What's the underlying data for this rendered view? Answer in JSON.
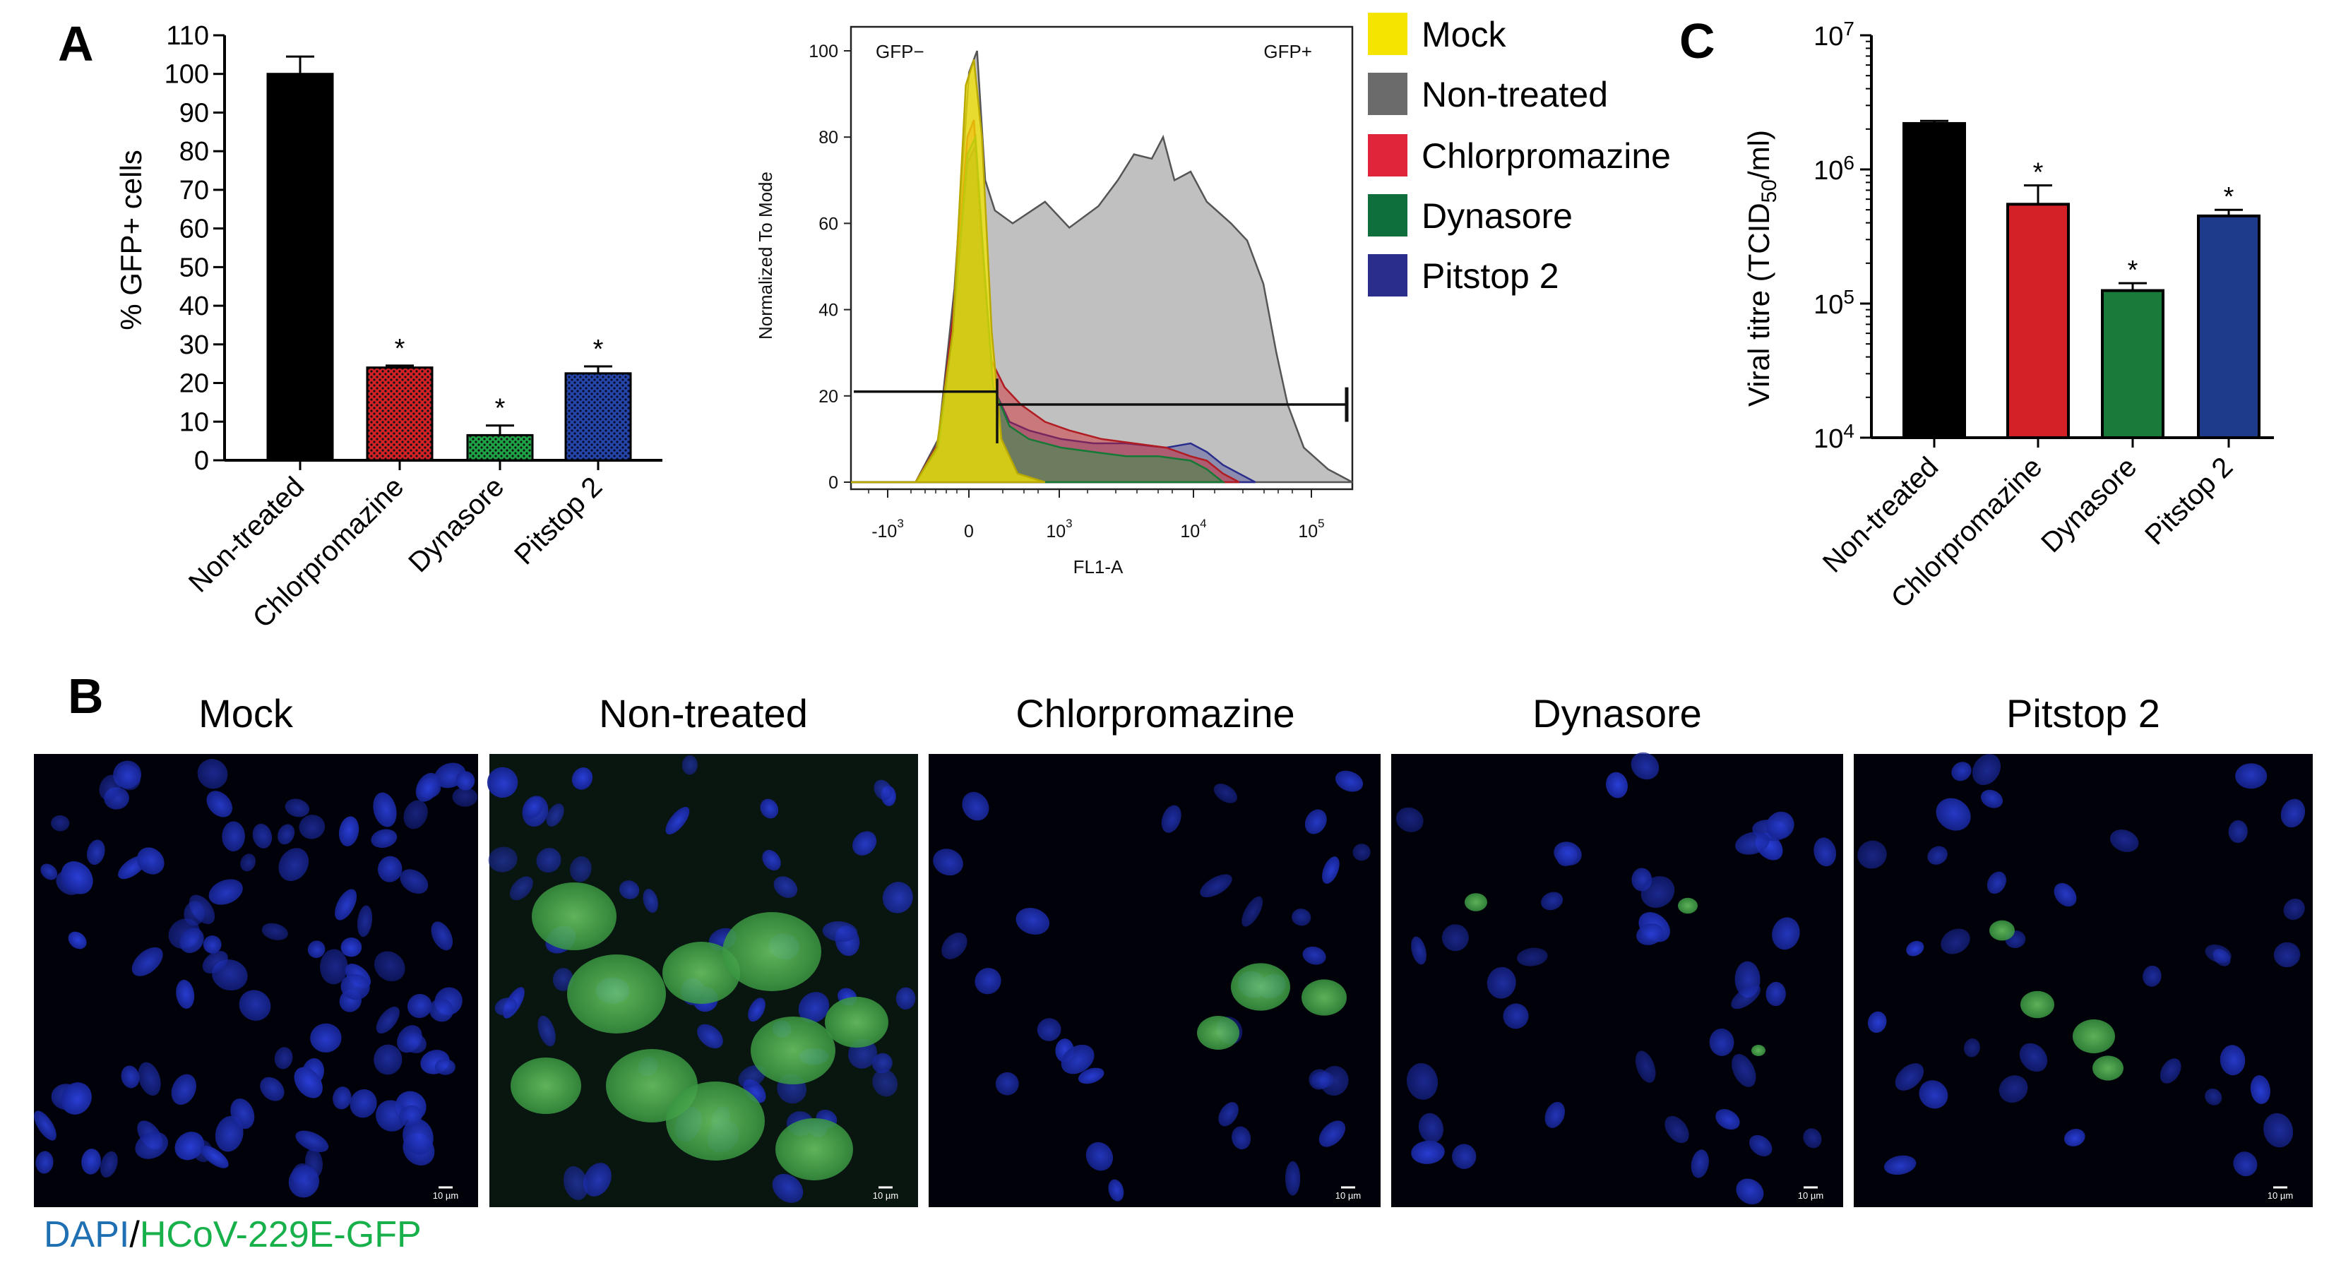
{
  "panel_labels": {
    "a": "A",
    "b": "B",
    "c": "C"
  },
  "colors": {
    "black": "#000000",
    "chlor_red": "#d42127",
    "dynasore_green": "#1fa548",
    "pitstop_navy": "#1e3a8a",
    "mock_yellow": "#f5e400",
    "nontreated_gray": "#8a8a8a",
    "legend_red": "#e0253a",
    "legend_green": "#0f6f3c",
    "legend_navy": "#2a2d8c",
    "dapi_label": "#1f6fb3",
    "gfp_label": "#18b04a"
  },
  "chart_data": [
    {
      "type": "bar",
      "title": "",
      "ylabel": "% GFP+ cells",
      "xlabel": "",
      "categories": [
        "Non-treated",
        "Chlorpromazine",
        "Dynasore",
        "Pitstop 2"
      ],
      "values": [
        100,
        24,
        6.5,
        22.5
      ],
      "errors": [
        4.5,
        0.5,
        2.5,
        1.8
      ],
      "significance": [
        "",
        "*",
        "*",
        "*"
      ],
      "patterns": [
        "solid",
        "dots",
        "dots",
        "dots"
      ],
      "ylim": [
        0,
        110
      ],
      "yticks": [
        "0",
        "10",
        "20",
        "30",
        "40",
        "50",
        "60",
        "70",
        "80",
        "90",
        "100",
        "110"
      ]
    },
    {
      "type": "area",
      "title": "",
      "xlabel": "FL1-A",
      "ylabel": "Normalized To Mode",
      "ylim": [
        0,
        100
      ],
      "yticks": [
        "0",
        "20",
        "40",
        "60",
        "80",
        "100"
      ],
      "xticks": [
        {
          "base": "-10",
          "exp": "3"
        },
        {
          "base": "0",
          "exp": ""
        },
        {
          "base": "10",
          "exp": "3"
        },
        {
          "base": "10",
          "exp": "4"
        },
        {
          "base": "10",
          "exp": "5"
        }
      ],
      "gates": {
        "negative": "GFP−",
        "positive": "GFP+"
      },
      "gate_line_y": 21,
      "legend": [
        "Mock",
        "Non-treated",
        "Chlorpromazine",
        "Dynasore",
        "Pitstop 2"
      ],
      "series": [
        {
          "name": "Mock",
          "points": [
            [
              0,
              0
            ],
            [
              4,
              0
            ],
            [
              5.3,
              8
            ],
            [
              6.3,
              35
            ],
            [
              7.1,
              92
            ],
            [
              7.6,
              98
            ],
            [
              8.1,
              80
            ],
            [
              8.7,
              35
            ],
            [
              9.3,
              10
            ],
            [
              10.3,
              2
            ],
            [
              12,
              0
            ]
          ]
        },
        {
          "name": "Non-treated",
          "points": [
            [
              0,
              0
            ],
            [
              4,
              0
            ],
            [
              5.4,
              10
            ],
            [
              6.4,
              45
            ],
            [
              7.3,
              95
            ],
            [
              7.8,
              100
            ],
            [
              8.3,
              70
            ],
            [
              8.9,
              63
            ],
            [
              10,
              60
            ],
            [
              12,
              65
            ],
            [
              13.5,
              59
            ],
            [
              15.3,
              64
            ],
            [
              16.5,
              70
            ],
            [
              17.5,
              76
            ],
            [
              18.6,
              75
            ],
            [
              19.3,
              80
            ],
            [
              20,
              70
            ],
            [
              21,
              72
            ],
            [
              22,
              65
            ],
            [
              23.5,
              60
            ],
            [
              24.5,
              56
            ],
            [
              25.5,
              46
            ],
            [
              26.3,
              30
            ],
            [
              27,
              18
            ],
            [
              28,
              8
            ],
            [
              29.5,
              3
            ],
            [
              31,
              0
            ]
          ]
        },
        {
          "name": "Chlorpromazine",
          "points": [
            [
              0,
              0
            ],
            [
              4,
              0
            ],
            [
              5.4,
              9
            ],
            [
              6.3,
              38
            ],
            [
              7.2,
              80
            ],
            [
              7.6,
              84
            ],
            [
              8.1,
              55
            ],
            [
              8.7,
              28
            ],
            [
              9.5,
              22
            ],
            [
              10.5,
              18
            ],
            [
              12,
              14
            ],
            [
              13.5,
              12
            ],
            [
              15.5,
              10
            ],
            [
              17.5,
              9
            ],
            [
              19.5,
              8
            ],
            [
              21,
              6
            ],
            [
              22,
              5
            ],
            [
              23,
              2
            ],
            [
              24,
              0
            ]
          ]
        },
        {
          "name": "Dynasore",
          "points": [
            [
              0,
              0
            ],
            [
              4,
              0
            ],
            [
              5.4,
              8
            ],
            [
              6.3,
              35
            ],
            [
              7.2,
              76
            ],
            [
              7.7,
              80
            ],
            [
              8.2,
              52
            ],
            [
              8.8,
              22
            ],
            [
              9.8,
              13
            ],
            [
              11,
              10
            ],
            [
              13,
              8
            ],
            [
              15,
              7
            ],
            [
              17,
              6
            ],
            [
              19,
              6
            ],
            [
              21,
              5
            ],
            [
              22,
              3
            ],
            [
              23,
              0
            ]
          ]
        },
        {
          "name": "Pitstop 2",
          "points": [
            [
              0,
              0
            ],
            [
              4,
              0
            ],
            [
              5.4,
              8
            ],
            [
              6.3,
              35
            ],
            [
              7.2,
              74
            ],
            [
              7.7,
              78
            ],
            [
              8.2,
              50
            ],
            [
              8.8,
              22
            ],
            [
              9.8,
              14
            ],
            [
              11,
              12
            ],
            [
              13,
              10
            ],
            [
              15,
              9
            ],
            [
              17,
              9
            ],
            [
              19.5,
              8
            ],
            [
              21,
              9
            ],
            [
              22,
              7
            ],
            [
              23,
              4
            ],
            [
              24,
              2
            ],
            [
              25,
              0
            ]
          ]
        }
      ]
    },
    {
      "type": "bar",
      "title": "",
      "ylabel": "Viral titre (TCID50/ml)",
      "ylabel_parts": {
        "main": "Viral titre (TCID",
        "sub": "50",
        "rest": "/ml)"
      },
      "xlabel": "",
      "scale": "log",
      "categories": [
        "Non-treated",
        "Chlorpromazine",
        "Dynasore",
        "Pitstop 2"
      ],
      "values": [
        2200000,
        550000,
        125000,
        450000
      ],
      "error_upper": [
        2300000,
        760000,
        142000,
        500000
      ],
      "significance": [
        "",
        "*",
        "*",
        "*"
      ],
      "ylim": [
        10000,
        10000000
      ],
      "yticks": [
        {
          "base": "10",
          "exp": "4"
        },
        {
          "base": "10",
          "exp": "5"
        },
        {
          "base": "10",
          "exp": "6"
        },
        {
          "base": "10",
          "exp": "7"
        }
      ]
    }
  ],
  "microscopy": {
    "titles": [
      "Mock",
      "Non-treated",
      "Chlorpromazine",
      "Dynasore",
      "Pitstop 2"
    ],
    "scale_bar": "10 µm",
    "caption": {
      "dapi": "DAPI",
      "sep": "/",
      "gfp": "HCoV-229E-GFP"
    }
  }
}
